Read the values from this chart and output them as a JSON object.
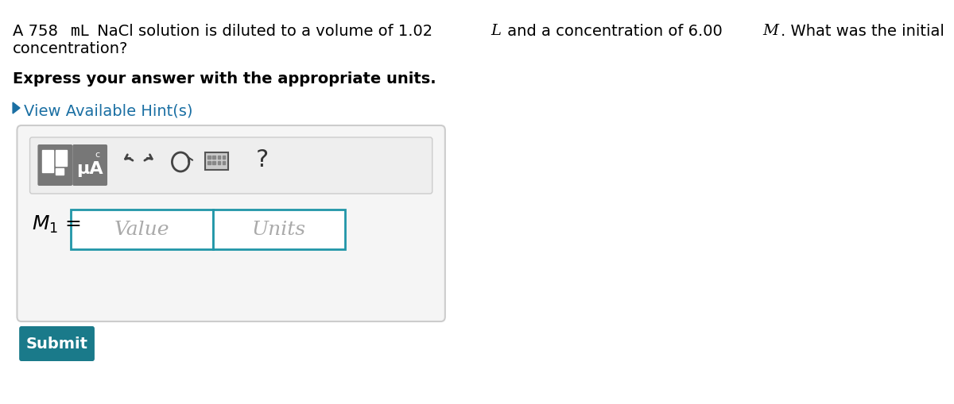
{
  "bg_color": "#ffffff",
  "question_text_line1": "A 758 mL NaCl solution is diluted to a volume of 1.02 L and a concentration of 6.00 M. What was the initial",
  "question_text_line2": "concentration?",
  "bold_text": "Express your answer with the appropriate units.",
  "hint_text": "View Available Hint(s)",
  "hint_color": "#1a6fa3",
  "hint_arrow_color": "#1a6fa3",
  "m1_label": "$M_1$ =",
  "value_placeholder": "Value",
  "units_placeholder": "Units",
  "submit_text": "Submit",
  "submit_bg": "#1a7a8a",
  "submit_text_color": "#ffffff",
  "input_border_color": "#2196a8",
  "toolbar_bg": "#e8e8e8",
  "icon_bg": "#888888",
  "panel_border_color": "#cccccc",
  "panel_bg": "#f5f5f5"
}
